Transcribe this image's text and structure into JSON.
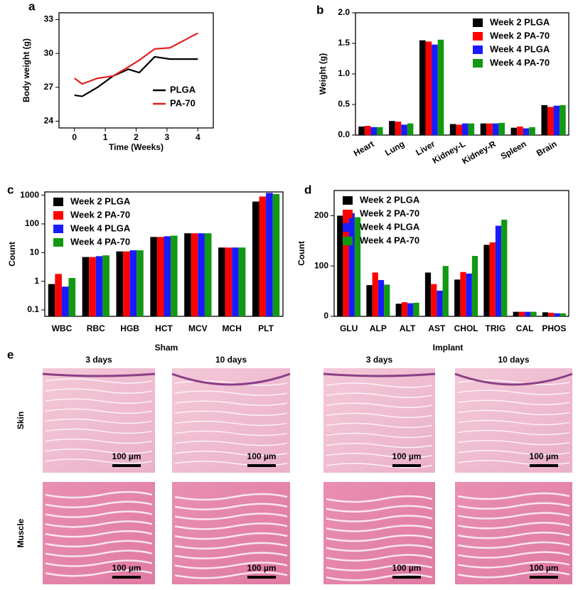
{
  "chart_data": [
    {
      "type": "line",
      "label": "a",
      "xlabel": "Time (Weeks)",
      "ylabel": "Body weight (g)",
      "x": [
        0,
        0.25,
        0.75,
        1.25,
        1.75,
        2.1,
        2.6,
        3.1,
        4
      ],
      "series": [
        {
          "name": "PLGA",
          "color": "#000000",
          "values": [
            26.3,
            26.2,
            27.0,
            28.0,
            28.6,
            28.3,
            29.7,
            29.5,
            29.5
          ]
        },
        {
          "name": "PA-70",
          "color": "#e02020",
          "values": [
            27.8,
            27.3,
            27.8,
            28.0,
            28.8,
            29.4,
            30.4,
            30.5,
            31.8
          ]
        }
      ],
      "xlim": [
        -0.5,
        4.5
      ],
      "xticks": [
        0,
        1,
        2,
        3,
        4
      ],
      "ylim": [
        23.4,
        33.6
      ],
      "yticks": [
        24,
        27,
        30,
        33
      ],
      "legend": "lower right"
    },
    {
      "type": "bar",
      "label": "b",
      "ylabel": "Weight (g)",
      "categories": [
        "Heart",
        "Lung",
        "Liver",
        "Kidney-L",
        "Kidney-R",
        "Spleen",
        "Brain"
      ],
      "series": [
        {
          "name": "Week 2 PLGA",
          "color": "#000000",
          "values": [
            0.14,
            0.23,
            1.55,
            0.18,
            0.19,
            0.12,
            0.49
          ]
        },
        {
          "name": "Week 2 PA-70",
          "color": "#ff0000",
          "values": [
            0.15,
            0.22,
            1.53,
            0.17,
            0.19,
            0.14,
            0.46
          ]
        },
        {
          "name": "Week 4 PLGA",
          "color": "#1a1aff",
          "values": [
            0.13,
            0.17,
            1.48,
            0.19,
            0.19,
            0.11,
            0.48
          ]
        },
        {
          "name": "Week 4 PA-70",
          "color": "#119911",
          "values": [
            0.13,
            0.19,
            1.56,
            0.19,
            0.2,
            0.13,
            0.49
          ]
        }
      ],
      "ylim": [
        0,
        2.0
      ],
      "yticks": [
        {
          "value": 0,
          "label": "0.0"
        },
        0.5,
        {
          "value": 1,
          "label": "1.0"
        },
        1.5,
        {
          "value": 2,
          "label": "2.0"
        }
      ],
      "legend": "upper right"
    },
    {
      "type": "bar",
      "label": "c",
      "ylabel": "Count",
      "log_scale": true,
      "categories": [
        "WBC",
        "RBC",
        "HGB",
        "HCT",
        "MCV",
        "MCH",
        "PLT"
      ],
      "series": [
        {
          "name": "Week 2 PLGA",
          "color": "#000000",
          "values": [
            0.8,
            7,
            11,
            35,
            47,
            15,
            600
          ]
        },
        {
          "name": "Week 2 PA-70",
          "color": "#ff0000",
          "values": [
            1.8,
            7,
            11,
            35,
            47,
            15,
            900
          ]
        },
        {
          "name": "Week 4 PLGA",
          "color": "#1a1aff",
          "values": [
            0.65,
            7.5,
            12,
            37,
            47,
            15,
            1200
          ]
        },
        {
          "name": "Week 4 PA-70",
          "color": "#119911",
          "values": [
            1.3,
            8,
            12,
            39,
            47,
            15,
            1100
          ]
        }
      ],
      "ylim": [
        0.06,
        1300
      ],
      "yticks": [
        0.1,
        1,
        10,
        100,
        1000
      ],
      "legend": "upper left"
    },
    {
      "type": "bar",
      "label": "d",
      "ylabel": "Count",
      "categories": [
        "GLU",
        "ALP",
        "ALT",
        "AST",
        "CHOL",
        "TRIG",
        "CAL",
        "PHOS"
      ],
      "series": [
        {
          "name": "Week 2 PLGA",
          "color": "#000000",
          "values": [
            200,
            62,
            25,
            87,
            73,
            142,
            9,
            8
          ]
        },
        {
          "name": "Week 2 PA-70",
          "color": "#ff0000",
          "values": [
            198,
            87,
            28,
            64,
            88,
            147,
            9,
            7
          ]
        },
        {
          "name": "Week 4 PLGA",
          "color": "#1a1aff",
          "values": [
            205,
            72,
            26,
            51,
            85,
            180,
            9,
            6
          ]
        },
        {
          "name": "Week 4 PA-70",
          "color": "#119911",
          "values": [
            197,
            63,
            27,
            100,
            120,
            192,
            9,
            6
          ]
        }
      ],
      "ylim": [
        0,
        250
      ],
      "yticks": [
        0,
        100,
        200
      ],
      "legend": "upper left"
    }
  ],
  "panel_e": {
    "label": "e",
    "groups": [
      {
        "title": "Sham",
        "columns": [
          "3 days",
          "10 days"
        ]
      },
      {
        "title": "Implant",
        "columns": [
          "3 days",
          "10 days"
        ]
      }
    ],
    "rows": [
      "Skin",
      "Muscle"
    ],
    "scale_bar": "100 µm"
  }
}
